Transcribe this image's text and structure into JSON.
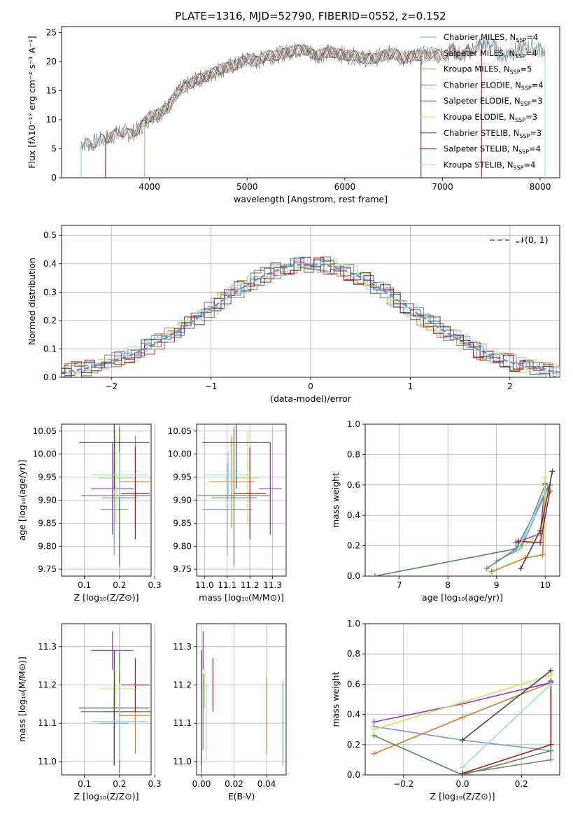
{
  "figure": {
    "title": "PLATE=1316, MJD=52790, FIBERID=0552, z=0.152"
  },
  "series_legend": [
    {
      "label": "Chabrier MILES, N",
      "sub": "SSP",
      "tail": "=4",
      "color": "#6fa0d8"
    },
    {
      "label": "Salpeter MILES, N",
      "sub": "SSP",
      "tail": "=4",
      "color": "#7f7f7f"
    },
    {
      "label": "Kroupa MILES, N",
      "sub": "SSP",
      "tail": "=5",
      "color": "#d97c1f"
    },
    {
      "label": "Chabrier ELODIE, N",
      "sub": "SSP",
      "tail": "=4",
      "color": "#4f8a4f"
    },
    {
      "label": "Salpeter ELODIE, N",
      "sub": "SSP",
      "tail": "=3",
      "color": "#9b30c0"
    },
    {
      "label": "Kroupa ELODIE, N",
      "sub": "SSP",
      "tail": "=3",
      "color": "#d2e35a"
    },
    {
      "label": "Chabrier STELIB, N",
      "sub": "SSP",
      "tail": "=3",
      "color": "#444444"
    },
    {
      "label": "Salpeter STELIB, N",
      "sub": "SSP",
      "tail": "=4",
      "color": "#b01818"
    },
    {
      "label": "Kroupa STELIB, N",
      "sub": "SSP",
      "tail": "=4",
      "color": "#8fdde8"
    }
  ],
  "chart_data": [
    {
      "id": "spectrum",
      "type": "line",
      "xlabel": "wavelength [Angstrom, rest frame]",
      "ylabel": "Flux [fλ10⁻¹⁷ erg cm⁻² s⁻¹ A⁻¹]",
      "xlim": [
        3100,
        8200
      ],
      "ylim": [
        0,
        26
      ],
      "xticks": [
        4000,
        5000,
        6000,
        7000,
        8000
      ],
      "yticks": [
        0,
        5,
        10,
        15,
        20,
        25
      ],
      "x": [
        3300,
        3400,
        3500,
        3600,
        3700,
        3800,
        3900,
        4000,
        4100,
        4200,
        4300,
        4400,
        4500,
        4600,
        4700,
        4800,
        4900,
        5000,
        5100,
        5200,
        5300,
        5400,
        5500,
        5600,
        5700,
        5800,
        5900,
        6000,
        6100,
        6200,
        6300,
        6400,
        6500,
        6600,
        6700,
        6800,
        6900,
        7000,
        7100,
        7200,
        7300,
        7400,
        7500,
        7600,
        7700,
        7800,
        7900,
        8000,
        8050
      ],
      "y": [
        6.0,
        5.8,
        6.5,
        7.0,
        8.0,
        7.5,
        8.5,
        10.5,
        11.0,
        12.5,
        15.0,
        16.0,
        17.0,
        17.5,
        18.5,
        19.0,
        19.5,
        20.5,
        20.0,
        21.0,
        21.0,
        21.5,
        22.0,
        22.0,
        21.0,
        21.5,
        21.5,
        21.0,
        21.0,
        20.5,
        20.5,
        21.0,
        21.5,
        20.5,
        21.0,
        21.0,
        21.5,
        21.0,
        22.0,
        21.0,
        22.0,
        23.0,
        23.0,
        21.0,
        21.5,
        22.0,
        22.5,
        22.0,
        22.0
      ],
      "grid": false,
      "legend_position": "upper right"
    },
    {
      "id": "residuals",
      "type": "histogram",
      "xlabel": "(data-model)/error",
      "ylabel": "Normed distribution",
      "xlim": [
        -2.5,
        2.5
      ],
      "ylim": [
        0,
        0.535
      ],
      "xticks": [
        -2,
        -1,
        0,
        1,
        2
      ],
      "yticks": [
        0.0,
        0.1,
        0.2,
        0.3,
        0.4,
        0.5
      ],
      "reference_curve": {
        "label": "𝒩(0, 1)",
        "mean": 0,
        "sigma": 1,
        "color": "#5b8fdd",
        "dash": true
      },
      "grid": true,
      "legend_position": "upper right"
    },
    {
      "id": "age_vs_Z",
      "type": "scatter",
      "xlabel": "Z [log₁₀(Z/Z⊙)]",
      "ylabel": "age  [log₁₀(age/yr)]",
      "xlim": [
        0.035,
        0.29
      ],
      "ylim": [
        9.735,
        10.065
      ],
      "xticks": [
        0.1,
        0.2,
        0.3
      ],
      "yticks": [
        9.75,
        9.8,
        9.85,
        9.9,
        9.95,
        10.0,
        10.05
      ],
      "grid": true
    },
    {
      "id": "age_vs_mass",
      "type": "scatter",
      "xlabel": "mass [log₁₀(M/M⊙)]",
      "xlim": [
        10.965,
        11.36
      ],
      "ylim": [
        9.735,
        10.065
      ],
      "xticks": [
        11.0,
        11.1,
        11.2,
        11.3
      ],
      "yticks": [
        9.75,
        9.8,
        9.85,
        9.9,
        9.95,
        10.0,
        10.05
      ],
      "grid": true
    },
    {
      "id": "massweight_vs_age",
      "type": "line",
      "xlabel": "age  [log₁₀(age/yr)]",
      "ylabel": "mass weight",
      "xlim": [
        6.3,
        10.3
      ],
      "ylim": [
        0,
        1.0
      ],
      "xticks": [
        7,
        8,
        9,
        10
      ],
      "yticks": [
        0.0,
        0.2,
        0.4,
        0.6,
        0.8,
        1.0
      ],
      "grid": true
    },
    {
      "id": "mass_vs_Z",
      "type": "scatter",
      "xlabel": "Z [log₁₀(Z/Z⊙)]",
      "ylabel": "mass [log₁₀(M/M⊙)]",
      "xlim": [
        0.035,
        0.29
      ],
      "ylim": [
        10.965,
        11.36
      ],
      "xticks": [
        0.1,
        0.2,
        0.3
      ],
      "yticks": [
        11.0,
        11.1,
        11.2,
        11.3
      ],
      "grid": true
    },
    {
      "id": "mass_vs_ebv",
      "type": "scatter",
      "xlabel": "E(B-V)",
      "xlim": [
        -0.003,
        0.052
      ],
      "ylim": [
        10.965,
        11.36
      ],
      "xticks": [
        0.0,
        0.02,
        0.04
      ],
      "yticks": [
        11.0,
        11.1,
        11.2,
        11.3
      ],
      "grid": true
    },
    {
      "id": "massweight_vs_Z",
      "type": "line",
      "xlabel": "Z [log₁₀(Z/Z⊙)]",
      "ylabel": "mass weight",
      "xlim": [
        -0.33,
        0.33
      ],
      "ylim": [
        0,
        1.0
      ],
      "xticks": [
        -0.2,
        0.0,
        0.2
      ],
      "yticks": [
        0.0,
        0.2,
        0.4,
        0.6,
        0.8,
        1.0
      ],
      "grid": true
    }
  ],
  "fits": [
    {
      "Z": 0.185,
      "Z_err": 0.04,
      "age": 9.88,
      "age_err": 0.1,
      "mass": 11.1,
      "mass_err": 0.11,
      "ebv": 0.05,
      "age_w": [
        [
          9.0,
          0.1
        ],
        [
          9.5,
          0.18
        ],
        [
          10.05,
          0.58
        ]
      ],
      "Z_w": [
        [
          -0.3,
          0.32
        ],
        [
          0.0,
          0.23
        ],
        [
          0.3,
          0.16
        ]
      ]
    },
    {
      "Z": 0.2,
      "Z_err": 0.05,
      "age": 9.905,
      "age_err": 0.15,
      "mass": 11.13,
      "mass_err": 0.1,
      "ebv": 0.001,
      "age_w": [
        [
          8.8,
          0.05
        ],
        [
          9.5,
          0.2
        ],
        [
          10.0,
          0.6
        ]
      ],
      "Z_w": [
        [
          0.0,
          0.01
        ],
        [
          0.3,
          0.1
        ],
        [
          0.3,
          0.6
        ]
      ]
    },
    {
      "Z": 0.245,
      "Z_err": 0.045,
      "age": 9.94,
      "age_err": 0.1,
      "mass": 11.12,
      "mass_err": 0.1,
      "ebv": 0.04,
      "age_w": [
        [
          8.9,
          0.03
        ],
        [
          9.6,
          0.12
        ],
        [
          9.95,
          0.14
        ],
        [
          10.0,
          0.6
        ]
      ],
      "Z_w": [
        [
          -0.3,
          0.14
        ],
        [
          0.0,
          0.38
        ],
        [
          0.3,
          0.61
        ]
      ]
    },
    {
      "Z": 0.2,
      "Z_err": 0.11,
      "age": 9.91,
      "age_err": 0.15,
      "mass": 11.13,
      "mass_err": 0.16,
      "ebv": 0.0,
      "age_w": [
        [
          6.5,
          0.0
        ],
        [
          9.4,
          0.18
        ],
        [
          10.1,
          0.6
        ]
      ],
      "Z_w": [
        [
          -0.3,
          0.26
        ],
        [
          0.0,
          0.0
        ],
        [
          0.3,
          0.16
        ]
      ]
    },
    {
      "Z": 0.18,
      "Z_err": 0.06,
      "age": 9.925,
      "age_err": 0.1,
      "mass": 11.29,
      "mass_err": 0.05,
      "ebv": 0.001,
      "age_w": [
        [
          9.4,
          0.22
        ],
        [
          9.9,
          0.28
        ],
        [
          10.0,
          0.61
        ]
      ],
      "Z_w": [
        [
          -0.3,
          0.35
        ],
        [
          0.0,
          0.47
        ],
        [
          0.3,
          0.61
        ]
      ]
    },
    {
      "Z": 0.19,
      "Z_err": 0.05,
      "age": 9.948,
      "age_err": 0.1,
      "mass": 11.19,
      "mass_err": 0.05,
      "ebv": 0.002,
      "age_w": [
        [
          9.5,
          0.18
        ],
        [
          9.95,
          0.3
        ],
        [
          10.0,
          0.65
        ]
      ],
      "Z_w": [
        [
          -0.3,
          0.3
        ],
        [
          0.0,
          0.48
        ],
        [
          0.3,
          0.66
        ]
      ]
    },
    {
      "Z": 0.185,
      "Z_err": 0.1,
      "age": 10.025,
      "age_err": 0.1,
      "mass": 11.14,
      "mass_err": 0.15,
      "ebv": 0.0,
      "age_w": [
        [
          9.5,
          0.05
        ],
        [
          9.9,
          0.3
        ],
        [
          10.15,
          0.69
        ]
      ],
      "Z_w": [
        [
          0.0,
          0.23
        ],
        [
          0.3,
          0.69
        ]
      ]
    },
    {
      "Z": 0.245,
      "Z_err": 0.04,
      "age": 9.915,
      "age_err": 0.1,
      "mass": 11.2,
      "mass_err": 0.07,
      "ebv": 0.007,
      "age_w": [
        [
          9.45,
          0.23
        ],
        [
          9.9,
          0.22
        ],
        [
          10.1,
          0.56
        ]
      ],
      "Z_w": [
        [
          0.0,
          0.01
        ],
        [
          0.3,
          0.2
        ],
        [
          0.3,
          0.62
        ]
      ]
    },
    {
      "Z": 0.2,
      "Z_err": 0.08,
      "age": 9.955,
      "age_err": 0.05,
      "mass": 11.105,
      "mass_err": 0.1,
      "ebv": 0.003,
      "age_w": [
        [
          9.45,
          0.18
        ],
        [
          10.0,
          0.56
        ]
      ],
      "Z_w": [
        [
          0.0,
          0.05
        ],
        [
          0.3,
          0.6
        ]
      ]
    }
  ]
}
